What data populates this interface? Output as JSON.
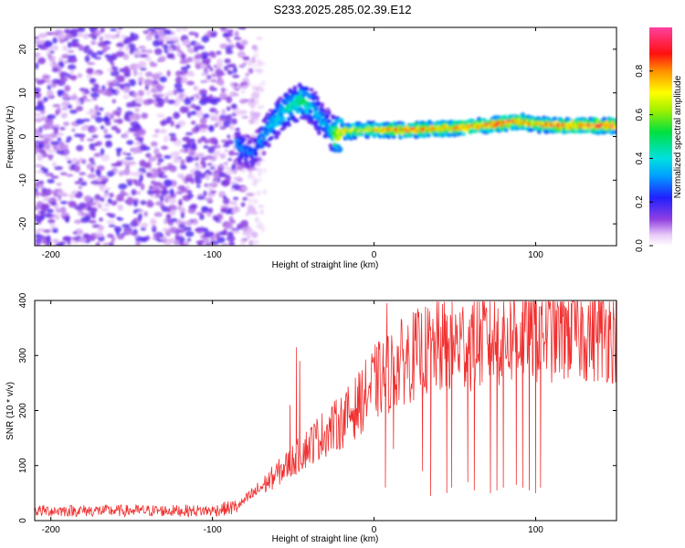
{
  "title": "S233.2025.285.02.39.E12",
  "chart_data": [
    {
      "type": "heatmap",
      "xlabel": "Height of straight line (km)",
      "ylabel": "Frequency (Hz)",
      "xlim": [
        -210,
        150
      ],
      "ylim": [
        -25,
        25
      ],
      "xticks": [
        -200,
        -100,
        0,
        100
      ],
      "yticks": [
        -20,
        -10,
        0,
        10,
        20
      ],
      "xtick_labels": [
        "-200",
        "-100",
        "0",
        "100"
      ],
      "ytick_labels": [
        "-20",
        "-10",
        "0",
        "10",
        "20"
      ],
      "colorbar": {
        "label": "Normalized spectral amplitude",
        "range": [
          0,
          1
        ],
        "ticks": [
          0.0,
          0.2,
          0.4,
          0.6,
          0.8
        ],
        "tick_labels": [
          "0.0",
          "0.2",
          "0.4",
          "0.6",
          "0.8"
        ]
      },
      "noise_region_x": [
        -210,
        -85
      ],
      "ridge": {
        "x": [
          -85,
          -75,
          -65,
          -55,
          -45,
          -38,
          -33,
          -28,
          -24,
          -20,
          -10,
          0,
          20,
          40,
          60,
          80,
          90,
          100,
          120,
          150
        ],
        "freq": [
          -2,
          -4,
          2,
          6,
          8,
          7,
          4,
          2,
          0,
          1,
          1.5,
          1.5,
          1.5,
          1.8,
          2.2,
          3,
          3.5,
          2.8,
          2.5,
          2.5
        ],
        "amplitude": [
          0.35,
          0.3,
          0.4,
          0.45,
          0.55,
          0.45,
          0.4,
          0.35,
          0.7,
          0.8,
          0.75,
          0.8,
          0.9,
          0.85,
          0.9,
          0.95,
          0.9,
          0.85,
          0.95,
          0.98
        ]
      }
    },
    {
      "type": "line",
      "xlabel": "Height of straight line (km)",
      "ylabel": "SNR (10 * v/v)",
      "xlim": [
        -210,
        150
      ],
      "ylim": [
        0,
        400
      ],
      "xticks": [
        -200,
        -100,
        0,
        100
      ],
      "yticks": [
        0,
        100,
        200,
        300,
        400
      ],
      "xtick_labels": [
        "-200",
        "-100",
        "0",
        "100"
      ],
      "ytick_labels": [
        "0",
        "100",
        "200",
        "300",
        "400"
      ],
      "series": [
        {
          "name": "SNR",
          "color": "#f03030",
          "trend_x": [
            -210,
            -100,
            -85,
            -70,
            -50,
            -35,
            -20,
            -10,
            0,
            10,
            20,
            30,
            50,
            70,
            100,
            150
          ],
          "trend_y": [
            18,
            18,
            25,
            60,
            110,
            150,
            180,
            210,
            250,
            270,
            295,
            305,
            320,
            330,
            345,
            345
          ],
          "spikes": [
            {
              "x": -48,
              "y": 315
            },
            {
              "x": -46,
              "y": 290
            },
            {
              "x": -52,
              "y": 210
            },
            {
              "x": 8,
              "y": 395
            },
            {
              "x": 7,
              "y": 60
            },
            {
              "x": 12,
              "y": 130
            },
            {
              "x": 30,
              "y": 90
            },
            {
              "x": 35,
              "y": 45
            },
            {
              "x": 45,
              "y": 50
            },
            {
              "x": 48,
              "y": 60
            },
            {
              "x": 58,
              "y": 70
            },
            {
              "x": 62,
              "y": 55
            },
            {
              "x": 72,
              "y": 50
            },
            {
              "x": 76,
              "y": 55
            },
            {
              "x": 80,
              "y": 60
            },
            {
              "x": 88,
              "y": 65
            },
            {
              "x": 92,
              "y": 60
            },
            {
              "x": 96,
              "y": 55
            },
            {
              "x": 100,
              "y": 50
            },
            {
              "x": 103,
              "y": 60
            },
            {
              "x": 122,
              "y": 395
            },
            {
              "x": 118,
              "y": 390
            }
          ]
        }
      ]
    }
  ]
}
